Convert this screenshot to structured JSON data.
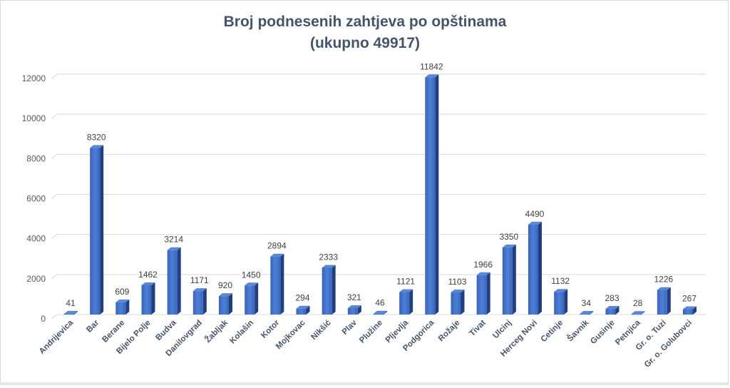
{
  "chart_data": {
    "type": "bar",
    "title": [
      "Broj podnesenih zahtjeva po opštinama",
      "(ukupno 49917)"
    ],
    "xlabel": "",
    "ylabel": "",
    "ylim": [
      0,
      12000
    ],
    "yticks": [
      "0",
      "2000",
      "4000",
      "6000",
      "8000",
      "10000",
      "12000"
    ],
    "grid": true,
    "style": "3d-column",
    "bar_color": "#4472c4",
    "categories": [
      "Andrijevica",
      "Bar",
      "Berane",
      "Bijelo Polje",
      "Budva",
      "Danilovgrad",
      "Žabljak",
      "Kolašin",
      "Kotor",
      "Mojkovac",
      "Nikšić",
      "Plav",
      "Plužine",
      "Pljevlja",
      "Podgorica",
      "Rožaje",
      "Tivat",
      "Ulcinj",
      "Herceg Novi",
      "Cetinje",
      "Šavnik",
      "Gusinje",
      "Petnjica",
      "Gr. o. Tuzi",
      "Gr. o. Golubovci"
    ],
    "values": [
      41,
      8320,
      609,
      1462,
      3214,
      1171,
      920,
      1450,
      2894,
      294,
      2333,
      321,
      46,
      1121,
      11842,
      1103,
      1966,
      3350,
      4490,
      1132,
      34,
      283,
      28,
      1226,
      267
    ],
    "data_labels": [
      "41",
      "8320",
      "609",
      "1462",
      "3214",
      "1171",
      "920",
      "1450",
      "2894",
      "294",
      "2333",
      "321",
      "46",
      "1121",
      "11842",
      "1103",
      "1966",
      "3350",
      "4490",
      "1132",
      "34",
      "283",
      "28",
      "1226",
      "267"
    ]
  }
}
